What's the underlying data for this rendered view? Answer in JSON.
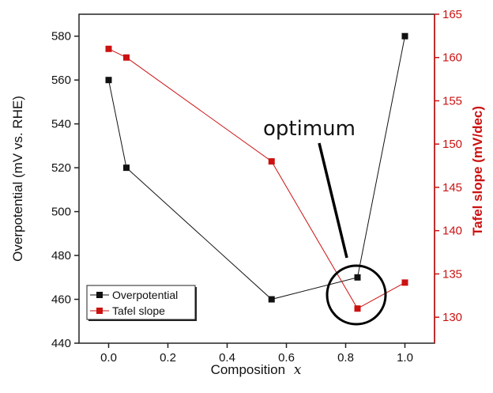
{
  "chart_data": {
    "type": "line",
    "x": [
      0.0,
      0.06,
      0.55,
      0.84,
      1.0
    ],
    "xlabel_text": "Composition",
    "xlabel_var": "x",
    "xlim": [
      -0.1,
      1.1
    ],
    "xticks": [
      "0.0",
      "0.2",
      "0.4",
      "0.6",
      "0.8",
      "1.0"
    ],
    "series": [
      {
        "name": "Overpotential",
        "axis": "left",
        "color": "#111111",
        "x": [
          0.0,
          0.06,
          0.55,
          0.84,
          1.0
        ],
        "values": [
          560,
          520,
          460,
          470,
          580
        ]
      },
      {
        "name": "Tafel slope",
        "axis": "right",
        "color": "#cc1111",
        "x": [
          0.0,
          0.06,
          0.55,
          0.84,
          1.0
        ],
        "values": [
          161,
          160,
          148,
          131,
          134
        ]
      }
    ],
    "ylabel_left": "Overpotential (mV vs. RHE)",
    "ylim_left": [
      440,
      590
    ],
    "yticks_left": [
      "440",
      "460",
      "480",
      "500",
      "520",
      "540",
      "560",
      "580"
    ],
    "ylabel_right": "Tafel slope (mV/dec)",
    "ylim_right": [
      127,
      165
    ],
    "yticks_right": [
      "130",
      "135",
      "140",
      "145",
      "150",
      "155",
      "160",
      "165"
    ],
    "legend_position": "bottom-left",
    "grid": false,
    "annotation": {
      "text": "optimum",
      "target_x": 0.84
    }
  }
}
